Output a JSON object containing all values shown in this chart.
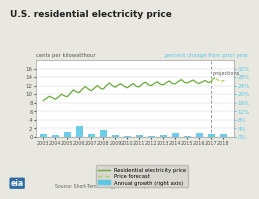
{
  "title": "U.S. residential electricity price",
  "left_ylabel": "cents per kilowatthour",
  "right_ylabel": "percent change from prior year",
  "source_text": "Source: Short-Term Energy Outlook, September 2017",
  "price_years": [
    2003.0,
    2003.25,
    2003.5,
    2003.75,
    2004.0,
    2004.25,
    2004.5,
    2004.75,
    2005.0,
    2005.25,
    2005.5,
    2005.75,
    2006.0,
    2006.25,
    2006.5,
    2006.75,
    2007.0,
    2007.25,
    2007.5,
    2007.75,
    2008.0,
    2008.25,
    2008.5,
    2008.75,
    2009.0,
    2009.25,
    2009.5,
    2009.75,
    2010.0,
    2010.25,
    2010.5,
    2010.75,
    2011.0,
    2011.25,
    2011.5,
    2011.75,
    2012.0,
    2012.25,
    2012.5,
    2012.75,
    2013.0,
    2013.25,
    2013.5,
    2013.75,
    2014.0,
    2014.25,
    2014.5,
    2014.75,
    2015.0,
    2015.25,
    2015.5,
    2015.75,
    2016.0,
    2016.25,
    2016.5,
    2016.75,
    2017.0,
    2017.25
  ],
  "price_values": [
    8.5,
    9.0,
    9.5,
    9.2,
    8.8,
    9.3,
    10.0,
    9.6,
    9.4,
    10.2,
    11.0,
    10.5,
    10.4,
    11.2,
    11.8,
    11.2,
    10.8,
    11.4,
    12.0,
    11.4,
    11.2,
    12.0,
    12.6,
    12.0,
    11.6,
    12.2,
    12.4,
    11.8,
    11.5,
    12.0,
    12.5,
    11.8,
    11.7,
    12.4,
    12.8,
    12.2,
    12.0,
    12.5,
    12.9,
    12.3,
    12.2,
    12.7,
    13.1,
    12.5,
    12.4,
    13.0,
    13.4,
    12.8,
    12.6,
    13.0,
    13.3,
    12.7,
    12.5,
    12.9,
    13.2,
    12.7,
    13.0,
    13.8
  ],
  "forecast_years": [
    2017.0,
    2017.25,
    2017.5,
    2017.75,
    2018.0,
    2018.25
  ],
  "forecast_values": [
    13.0,
    13.8,
    13.4,
    12.9,
    13.2,
    12.8
  ],
  "bar_years": [
    2003,
    2004,
    2005,
    2006,
    2007,
    2008,
    2009,
    2010,
    2011,
    2012,
    2013,
    2014,
    2015,
    2016,
    2017
  ],
  "bar_values": [
    1.5,
    1.0,
    2.5,
    5.0,
    1.2,
    3.0,
    0.8,
    0.5,
    0.7,
    0.6,
    0.8,
    1.8,
    0.4,
    2.0,
    1.5
  ],
  "bar_2018": 1.4,
  "bar_color": "#5bc8e8",
  "line_color": "#6aaa3a",
  "forecast_color": "#aad45a",
  "projection_line_x": 2017,
  "ylim_left": [
    0,
    18
  ],
  "ylim_right": [
    0,
    36
  ],
  "yticks_left": [
    0,
    2,
    4,
    6,
    8,
    10,
    12,
    14,
    16
  ],
  "yticks_right_vals": [
    0,
    4,
    8,
    12,
    16,
    20,
    24,
    28,
    32
  ],
  "yticks_right_labels": [
    "0%",
    "4%",
    "8%",
    "12%",
    "16%",
    "20%",
    "24%",
    "28%",
    "32%"
  ],
  "xlim": [
    2002.4,
    2018.9
  ],
  "xtick_labels": [
    "2003",
    "2004",
    "2005",
    "2006",
    "2007",
    "2008",
    "2009",
    "2010",
    "2011",
    "2012",
    "2013",
    "2014",
    "2015",
    "2016",
    "2017",
    "2018"
  ],
  "xtick_positions": [
    2003,
    2004,
    2005,
    2006,
    2007,
    2008,
    2009,
    2010,
    2011,
    2012,
    2013,
    2014,
    2015,
    2016,
    2017,
    2018
  ],
  "bg_color": "#e8e8e0",
  "plot_bg": "#ffffff",
  "title_color": "#222222",
  "legend_items": [
    "Residential electricity price",
    "Price forecast",
    "Annual growth (right axis)"
  ],
  "projections_label": "projections"
}
